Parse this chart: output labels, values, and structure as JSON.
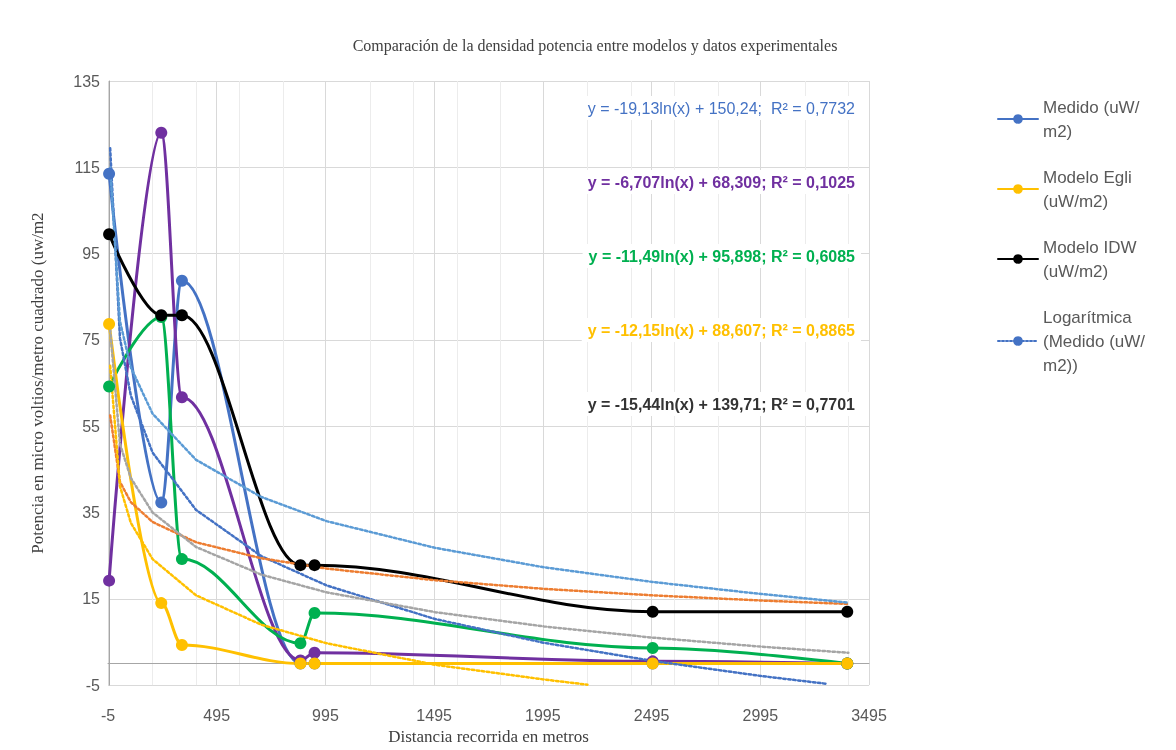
{
  "chart_data": {
    "type": "line",
    "title": "Comparación de la densidad potencia entre modelos y datos experimentales",
    "xlabel": "Distancia recorrida en metros",
    "ylabel": "Potencia en micro voltios/metro cuadrado (uw/m2",
    "xlim": [
      -5,
      3495
    ],
    "xticks": [
      -5,
      495,
      995,
      1495,
      1995,
      2495,
      2995,
      3495
    ],
    "ylim": [
      -5,
      135
    ],
    "yticks": [
      -5,
      15,
      35,
      55,
      75,
      95,
      115,
      135
    ],
    "grid": true,
    "legend": "right",
    "marker": "circle",
    "line_style": "solid",
    "series": [
      {
        "name": "Medido (uW/m2)",
        "color": "#4472c4",
        "x": [
          0,
          240,
          335,
          880,
          945,
          2500,
          3395
        ],
        "values": [
          113.5,
          37.3,
          88.7,
          0,
          0,
          0,
          0
        ]
      },
      {
        "color": "#7030a0",
        "x": [
          0,
          240,
          335,
          880,
          945,
          2500,
          3395
        ],
        "values": [
          19.2,
          123,
          61.7,
          0.7,
          2.5,
          0.5,
          0
        ]
      },
      {
        "color": "#00b050",
        "x": [
          0,
          240,
          335,
          880,
          945,
          2500,
          3395
        ],
        "values": [
          64.2,
          80.3,
          24.2,
          4.7,
          11.7,
          3.6,
          0
        ]
      },
      {
        "name": "Modelo Egli (uW/m2)",
        "color": "#ffc000",
        "x": [
          0,
          240,
          335,
          880,
          945,
          2500,
          3395
        ],
        "values": [
          78.7,
          14,
          4.3,
          0,
          0,
          0,
          0
        ]
      },
      {
        "name": "Modelo IDW (uW/m2)",
        "color": "#000000",
        "x": [
          0,
          240,
          335,
          880,
          945,
          2500,
          3395
        ],
        "values": [
          99.5,
          80.7,
          80.7,
          22.8,
          22.8,
          12,
          12
        ]
      },
      {
        "name": "Logarítmica (Medido (uW/m2))",
        "color": "#4472c4",
        "marker": "none",
        "line_style": "dotted",
        "x": [
          5,
          50,
          100,
          200,
          400,
          700,
          1000,
          1500,
          2000,
          2500,
          3000,
          3300
        ],
        "values": [
          119.4,
          75.4,
          62.1,
          48.9,
          35.6,
          24.9,
          18.1,
          10.3,
          4.8,
          0.6,
          -2.9,
          -4.7
        ]
      },
      {
        "color": "#ed7d31",
        "marker": "none",
        "line_style": "dotted",
        "x": [
          5,
          50,
          100,
          200,
          400,
          700,
          1000,
          1500,
          2000,
          2500,
          3000,
          3400
        ],
        "values": [
          57.5,
          42.1,
          37.4,
          32.8,
          28.1,
          24.4,
          22,
          19.3,
          17.3,
          15.8,
          14.6,
          13.8
        ]
      },
      {
        "color": "#a5a5a5",
        "marker": "none",
        "line_style": "dotted",
        "x": [
          5,
          50,
          100,
          200,
          400,
          700,
          1000,
          1500,
          2000,
          2500,
          3000,
          3400
        ],
        "values": [
          77.4,
          50.9,
          43,
          35,
          27,
          20.6,
          16.5,
          11.9,
          8.6,
          6,
          3.9,
          2.5
        ]
      },
      {
        "color": "#ffc000",
        "marker": "none",
        "line_style": "dotted",
        "x": [
          5,
          50,
          100,
          200,
          400,
          700,
          1000,
          1500,
          2000,
          2200
        ],
        "values": [
          69,
          41.1,
          32.6,
          24.2,
          15.8,
          9,
          4.7,
          -0.3,
          -3.7,
          -4.9
        ]
      },
      {
        "color": "#5b9bd5",
        "marker": "none",
        "line_style": "dotted",
        "x": [
          5,
          50,
          100,
          200,
          400,
          700,
          1000,
          1500,
          2000,
          2500,
          3000,
          3400
        ],
        "values": [
          114.9,
          79.3,
          68.6,
          57.9,
          47.2,
          38.6,
          33,
          26.8,
          22.3,
          18.9,
          16.1,
          14.1
        ]
      }
    ],
    "annotations": [
      "y = -19,13ln(x) + 150,24;  R² = 0,7732",
      "y = -6,707ln(x) + 68,309; R² = 0,1025",
      "y = -11,49ln(x) + 95,898; R² = 0,6085",
      "y = -12,15ln(x) + 88,607; R² = 0,8865",
      "y = -15,44ln(x) + 139,71; R² = 0,7701"
    ]
  }
}
